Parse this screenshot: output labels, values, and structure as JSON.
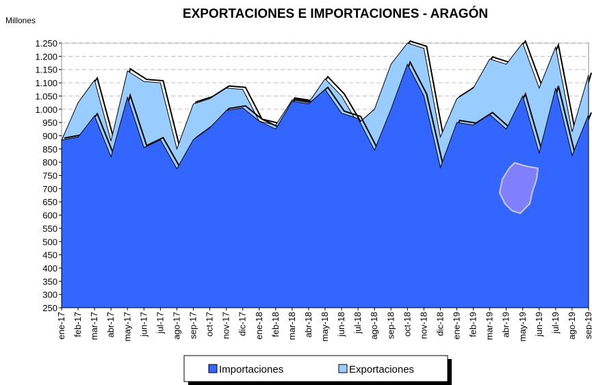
{
  "chart_data": {
    "type": "area",
    "title": "EXPORTACIONES E IMPORTACIONES - ARAGÓN",
    "y_label": "Millones",
    "categories": [
      "ene-17",
      "feb-17",
      "mar-17",
      "abr-17",
      "may-17",
      "jun-17",
      "jul-17",
      "ago-17",
      "sep-17",
      "oct-17",
      "nov-17",
      "dic-17",
      "ene-18",
      "feb-18",
      "mar-18",
      "abr-18",
      "may-18",
      "jun-18",
      "jul-18",
      "ago-18",
      "sep-18",
      "oct-18",
      "nov-18",
      "dic-18",
      "ene-19",
      "feb-19",
      "mar-19",
      "abr-19",
      "may-19",
      "jun-19",
      "jul-19",
      "ago-19",
      "sep-19"
    ],
    "series": [
      {
        "name": "Exportaciones",
        "color": "#99ccff",
        "values": [
          883,
          1025,
          1110,
          880,
          1145,
          1105,
          1100,
          850,
          1020,
          1040,
          1080,
          1075,
          955,
          940,
          1035,
          1025,
          1115,
          1050,
          945,
          1000,
          1170,
          1250,
          1230,
          895,
          1040,
          1080,
          1190,
          1170,
          1250,
          1080,
          1235,
          915,
          1130
        ]
      },
      {
        "name": "Importaciones",
        "color": "#3366ff",
        "values": [
          883,
          895,
          975,
          820,
          1045,
          855,
          885,
          775,
          885,
          930,
          995,
          1005,
          955,
          925,
          1030,
          1020,
          1075,
          985,
          965,
          845,
          1000,
          1170,
          1050,
          780,
          950,
          940,
          980,
          925,
          1050,
          835,
          1080,
          825,
          980
        ]
      }
    ],
    "legend_order": [
      1,
      0
    ],
    "ylim": [
      250,
      1250
    ],
    "yticks": [
      250,
      300,
      350,
      400,
      450,
      500,
      550,
      600,
      650,
      700,
      750,
      800,
      850,
      900,
      950,
      {
        "value": 1000,
        "label": "1.000"
      },
      {
        "value": 1050,
        "label": "1.050"
      },
      {
        "value": 1100,
        "label": "1.100"
      },
      {
        "value": 1150,
        "label": "1.150"
      },
      {
        "value": 1200,
        "label": "1.200"
      },
      {
        "value": 1250,
        "label": "1.250"
      }
    ],
    "grid": true
  }
}
